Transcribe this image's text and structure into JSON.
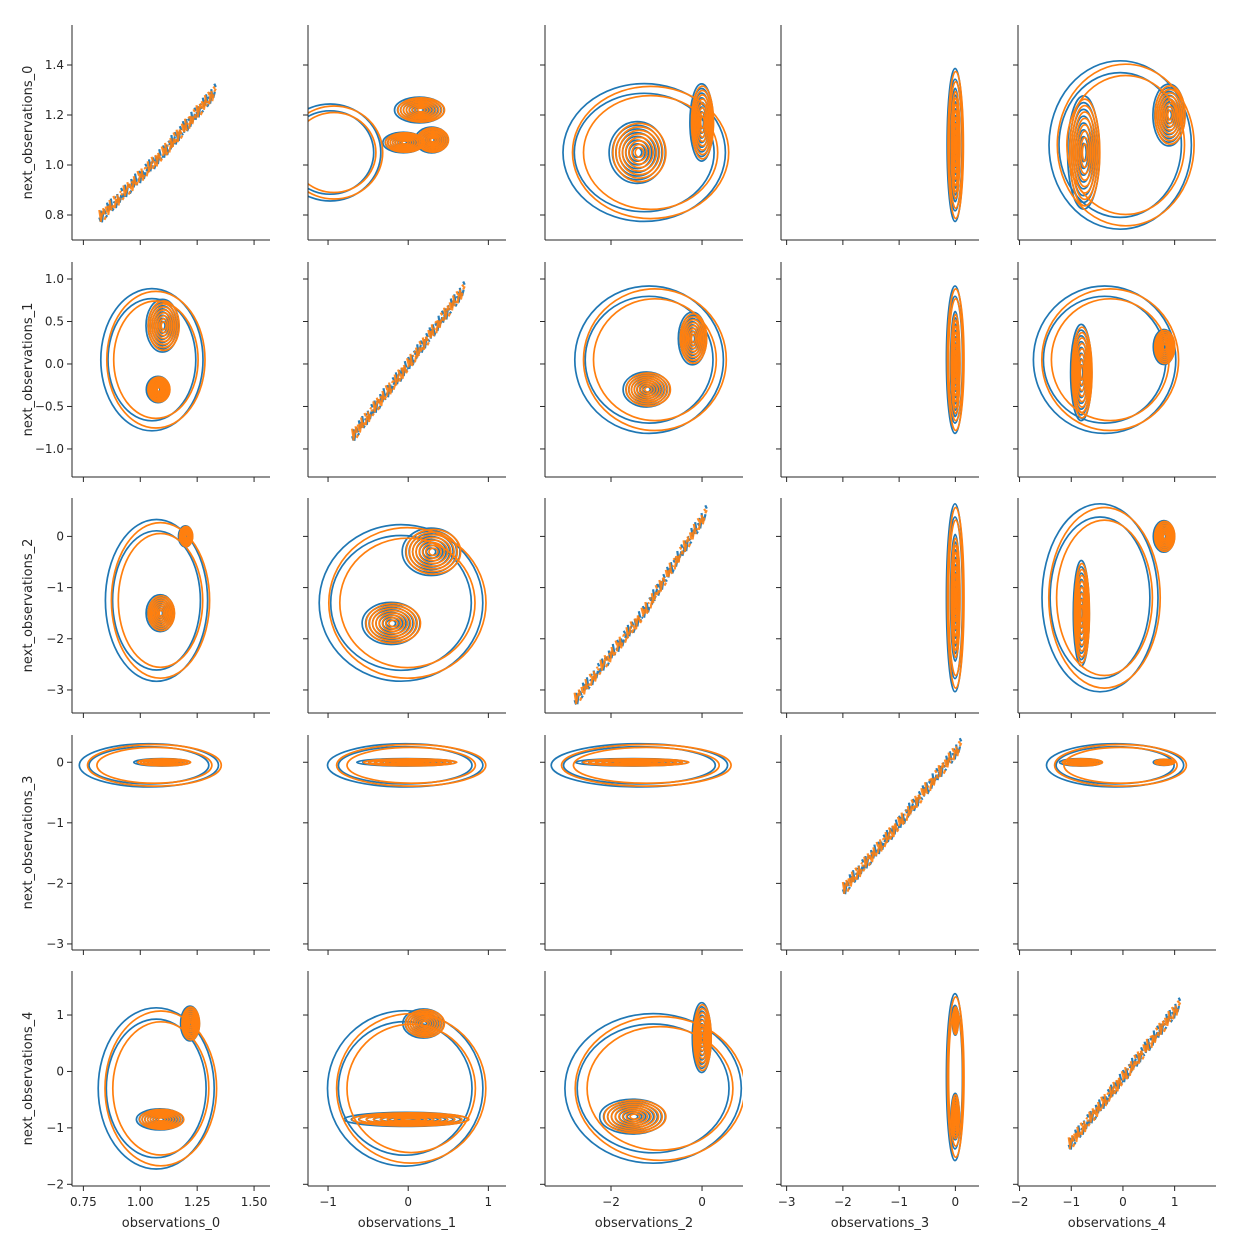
{
  "chart_data": {
    "type": "pairplot-kde-contour",
    "variables_x": [
      "observations_0",
      "observations_1",
      "observations_2",
      "observations_3",
      "observations_4"
    ],
    "variables_y": [
      "next_observations_0",
      "next_observations_1",
      "next_observations_2",
      "next_observations_3",
      "next_observations_4"
    ],
    "series": [
      {
        "color": "#1f77b4"
      },
      {
        "color": "#ff7f0e"
      }
    ],
    "x_axes": [
      {
        "label": "observations_0",
        "lim": [
          0.7,
          1.57
        ],
        "ticks": [
          0.75,
          1.0,
          1.25,
          1.5
        ],
        "tick_labels": [
          "0.75",
          "1.00",
          "1.25",
          "1.50"
        ]
      },
      {
        "label": "observations_1",
        "lim": [
          -1.25,
          1.22
        ],
        "ticks": [
          -1,
          0,
          1
        ],
        "tick_labels": [
          "−1",
          "0",
          "1"
        ]
      },
      {
        "label": "observations_2",
        "lim": [
          -3.45,
          0.9
        ],
        "ticks": [
          -2,
          0
        ],
        "tick_labels": [
          "−2",
          "0"
        ]
      },
      {
        "label": "observations_3",
        "lim": [
          -3.1,
          0.42
        ],
        "ticks": [
          -3,
          -2,
          -1,
          0
        ],
        "tick_labels": [
          "−3",
          "−2",
          "−1",
          "0"
        ]
      },
      {
        "label": "observations_4",
        "lim": [
          -2.03,
          1.8
        ],
        "ticks": [
          -2,
          -1,
          0,
          1
        ],
        "tick_labels": [
          "−2",
          "−1",
          "0",
          "1"
        ]
      }
    ],
    "y_axes": [
      {
        "label": "next_observations_0",
        "lim": [
          0.7,
          1.56
        ],
        "ticks": [
          0.8,
          1.0,
          1.2,
          1.4
        ],
        "tick_labels": [
          "0.8",
          "1.0",
          "1.2",
          "1.4"
        ]
      },
      {
        "label": "next_observations_1",
        "lim": [
          -1.33,
          1.2
        ],
        "ticks": [
          -1.0,
          -0.5,
          0.0,
          0.5,
          1.0
        ],
        "tick_labels": [
          "−1.0",
          "−0.5",
          "0.0",
          "0.5",
          "1.0"
        ]
      },
      {
        "label": "next_observations_2",
        "lim": [
          -3.45,
          0.75
        ],
        "ticks": [
          -3,
          -2,
          -1,
          0
        ],
        "tick_labels": [
          "−3",
          "−2",
          "−1",
          "0"
        ]
      },
      {
        "label": "next_observations_3",
        "lim": [
          -3.1,
          0.45
        ],
        "ticks": [
          -3,
          -2,
          -1,
          0
        ],
        "tick_labels": [
          "−3",
          "−2",
          "−1",
          "0"
        ]
      },
      {
        "label": "next_observations_4",
        "lim": [
          -2.03,
          1.78
        ],
        "ticks": [
          -2,
          -1,
          0,
          1
        ],
        "tick_labels": [
          "−2",
          "−1",
          "0",
          "1"
        ]
      }
    ],
    "panels_kde_modes": [
      [
        {
          "diagonal": true,
          "trend": [
            [
              0.82,
              0.79
            ],
            [
              1.1,
              1.05
            ],
            [
              1.33,
              1.3
            ]
          ]
        },
        {
          "modes": [
            [
              0.15,
              1.22,
              0.3,
              0.05
            ],
            [
              0.3,
              1.1,
              0.2,
              0.05
            ],
            [
              -0.05,
              1.09,
              0.25,
              0.04
            ]
          ],
          "outer": [
            [
              -0.95,
              1.05,
              0.62,
              0.19
            ]
          ]
        },
        {
          "modes": [
            [
              -1.4,
              1.05,
              0.6,
              0.12
            ],
            [
              0.0,
              1.17,
              0.25,
              0.15
            ]
          ],
          "outer": [
            [
              -1.2,
              1.05,
              1.75,
              0.27
            ]
          ]
        },
        {
          "modes": [
            [
              0.0,
              1.08,
              0.08,
              0.22
            ]
          ],
          "outer": [
            [
              0.0,
              1.08,
              0.14,
              0.3
            ]
          ]
        },
        {
          "modes": [
            [
              -0.75,
              1.05,
              0.3,
              0.22
            ],
            [
              0.9,
              1.2,
              0.3,
              0.12
            ]
          ],
          "outer": [
            [
              0.0,
              1.08,
              1.35,
              0.33
            ]
          ]
        }
      ],
      [
        {
          "modes": [
            [
              1.1,
              0.45,
              0.07,
              0.3
            ],
            [
              1.08,
              -0.3,
              0.05,
              0.15
            ]
          ],
          "outer": [
            [
              1.06,
              0.05,
              0.22,
              0.82
            ]
          ]
        },
        {
          "diagonal": true,
          "trend": [
            [
              -0.7,
              -0.85
            ],
            [
              0.0,
              0.0
            ],
            [
              0.7,
              0.9
            ]
          ]
        },
        {
          "modes": [
            [
              -1.2,
              -0.3,
              0.5,
              0.2
            ],
            [
              -0.2,
              0.3,
              0.3,
              0.3
            ]
          ],
          "outer": [
            [
              -1.1,
              0.05,
              1.6,
              0.85
            ]
          ]
        },
        {
          "modes": [
            [
              0.0,
              0.0,
              0.08,
              0.6
            ]
          ],
          "outer": [
            [
              0.0,
              0.05,
              0.15,
              0.85
            ]
          ]
        },
        {
          "modes": [
            [
              -0.8,
              -0.1,
              0.2,
              0.55
            ],
            [
              0.8,
              0.2,
              0.2,
              0.2
            ]
          ],
          "outer": [
            [
              -0.3,
              0.05,
              1.35,
              0.85
            ]
          ]
        }
      ],
      [
        {
          "modes": [
            [
              1.09,
              -1.5,
              0.06,
              0.35
            ],
            [
              1.2,
              0.0,
              0.03,
              0.2
            ]
          ],
          "outer": [
            [
              1.08,
              -1.25,
              0.22,
              1.55
            ]
          ]
        },
        {
          "modes": [
            [
              -0.2,
              -1.7,
              0.35,
              0.4
            ],
            [
              0.3,
              -0.3,
              0.35,
              0.45
            ]
          ],
          "outer": [
            [
              -0.05,
              -1.3,
              1.0,
              1.5
            ]
          ]
        },
        {
          "diagonal": true,
          "trend": [
            [
              -2.8,
              -3.2
            ],
            [
              -1.3,
              -1.5
            ],
            [
              0.1,
              0.5
            ]
          ]
        },
        {
          "modes": [
            [
              0.0,
              -1.2,
              0.08,
              1.2
            ]
          ],
          "outer": [
            [
              0.0,
              -1.2,
              0.15,
              1.8
            ]
          ]
        },
        {
          "modes": [
            [
              -0.8,
              -1.5,
              0.15,
              1.0
            ],
            [
              0.8,
              0.0,
              0.2,
              0.3
            ]
          ],
          "outer": [
            [
              -0.4,
              -1.2,
              1.1,
              1.8
            ]
          ]
        }
      ],
      [
        {
          "modes": [
            [
              1.1,
              0.0,
              0.12,
              0.06
            ]
          ],
          "outer": [
            [
              1.05,
              -0.05,
              0.3,
              0.35
            ]
          ]
        },
        {
          "modes": [
            [
              0.0,
              0.0,
              0.6,
              0.06
            ]
          ],
          "outer": [
            [
              0.0,
              -0.05,
              0.95,
              0.35
            ]
          ]
        },
        {
          "modes": [
            [
              -1.5,
              0.0,
              1.2,
              0.06
            ]
          ],
          "outer": [
            [
              -1.3,
              -0.05,
              1.9,
              0.35
            ]
          ]
        },
        {
          "diagonal": true,
          "trend": [
            [
              -2.0,
              -2.1
            ],
            [
              -1.0,
              -1.0
            ],
            [
              0.1,
              0.3
            ]
          ]
        },
        {
          "modes": [
            [
              -0.8,
              0.0,
              0.4,
              0.06
            ],
            [
              0.8,
              0.0,
              0.2,
              0.05
            ]
          ],
          "outer": [
            [
              -0.1,
              -0.05,
              1.3,
              0.35
            ]
          ]
        }
      ],
      [
        {
          "modes": [
            [
              1.09,
              -0.85,
              0.1,
              0.18
            ],
            [
              1.22,
              0.85,
              0.04,
              0.3
            ]
          ],
          "outer": [
            [
              1.08,
              -0.3,
              0.25,
              1.4
            ]
          ]
        },
        {
          "modes": [
            [
              0.0,
              -0.85,
              0.75,
              0.12
            ],
            [
              0.2,
              0.85,
              0.25,
              0.25
            ]
          ],
          "outer": [
            [
              0.0,
              -0.3,
              0.95,
              1.35
            ]
          ]
        },
        {
          "modes": [
            [
              -1.5,
              -0.8,
              0.7,
              0.3
            ],
            [
              0.0,
              0.6,
              0.2,
              0.6
            ]
          ],
          "outer": [
            [
              -1.0,
              -0.3,
              1.9,
              1.3
            ]
          ]
        },
        {
          "modes": [
            [
              0.0,
              -0.8,
              0.07,
              0.4
            ],
            [
              0.0,
              0.9,
              0.05,
              0.25
            ]
          ],
          "outer": [
            [
              0.0,
              -0.1,
              0.15,
              1.45
            ]
          ]
        },
        {
          "diagonal": true,
          "trend": [
            [
              -1.05,
              -1.3
            ],
            [
              0.0,
              -0.1
            ],
            [
              1.1,
              1.2
            ]
          ]
        }
      ]
    ]
  }
}
